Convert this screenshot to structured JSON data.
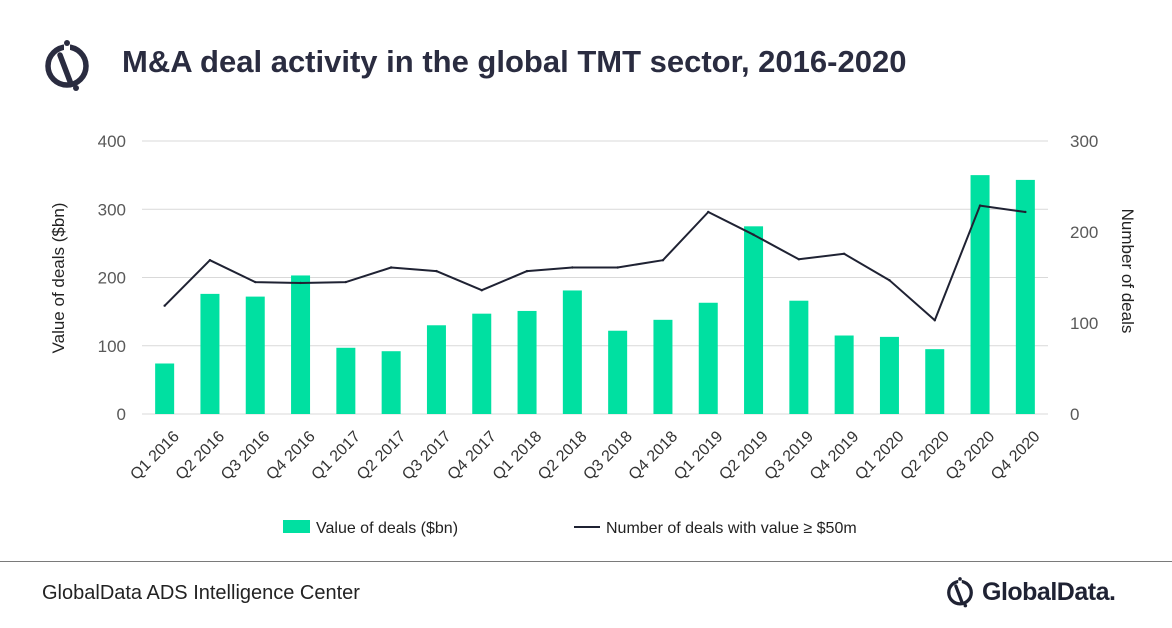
{
  "header": {
    "title": "M&A deal activity in the global TMT sector, 2016-2020"
  },
  "footer": {
    "source": "GlobalData ADS Intelligence Center",
    "brand": "GlobalData."
  },
  "colors": {
    "bar": "#00e0a1",
    "line": "#1f2233",
    "grid": "#d9d9d9",
    "text": "#595959"
  },
  "chart_data": {
    "type": "bar",
    "title": "M&A deal activity in the global TMT sector, 2016-2020",
    "categories": [
      "Q1 2016",
      "Q2 2016",
      "Q3 2016",
      "Q4 2016",
      "Q1 2017",
      "Q2 2017",
      "Q3 2017",
      "Q4 2017",
      "Q1 2018",
      "Q2 2018",
      "Q3 2018",
      "Q4 2018",
      "Q1 2019",
      "Q2 2019",
      "Q3 2019",
      "Q4 2019",
      "Q1 2020",
      "Q2 2020",
      "Q3 2020",
      "Q4 2020"
    ],
    "ylabel": "Value of deals ($bn)",
    "y2label": "Number of deals",
    "ylim": [
      0,
      400
    ],
    "y2lim": [
      0,
      300
    ],
    "yticks": [
      "0",
      "100",
      "200",
      "300",
      "400"
    ],
    "y2ticks": [
      "0",
      "100",
      "200",
      "300"
    ],
    "grid": true,
    "legend_position": "bottom",
    "series": [
      {
        "name": "Value of deals ($bn)",
        "type": "bar",
        "axis": "left",
        "values": [
          74,
          176,
          172,
          203,
          97,
          92,
          130,
          147,
          151,
          181,
          122,
          138,
          163,
          275,
          166,
          115,
          113,
          95,
          350,
          343
        ]
      },
      {
        "name": "Number of deals with value ≥  $50m",
        "type": "line",
        "axis": "right",
        "values": [
          119,
          169,
          145,
          144,
          145,
          161,
          157,
          136,
          157,
          161,
          161,
          169,
          222,
          197,
          170,
          176,
          147,
          103,
          229,
          222
        ]
      }
    ]
  }
}
